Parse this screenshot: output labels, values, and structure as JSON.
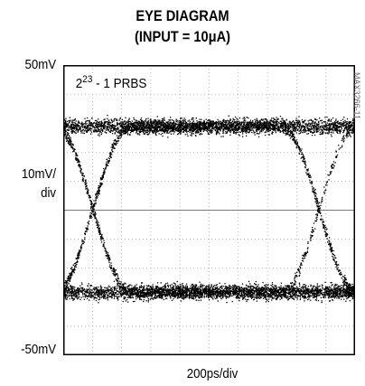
{
  "title": {
    "line1": "EYE DIAGRAM",
    "line2": "(INPUT = 10μA)"
  },
  "axes": {
    "y_top": "50mV",
    "y_scale_line1": "10mV/",
    "y_scale_line2": "div",
    "y_bottom": "-50mV",
    "x_scale": "200ps/div"
  },
  "annotation": {
    "pattern_base": "2",
    "pattern_exp": "23",
    "pattern_rest": " - 1 PRBS"
  },
  "part_number": "MAX3266-11",
  "chart_data": {
    "type": "eye_diagram",
    "title": "EYE DIAGRAM (INPUT = 10μA)",
    "xlabel": "200ps/div",
    "ylabel": "10mV/div",
    "ylim": [
      -50,
      50
    ],
    "y_unit": "mV",
    "x_divisions": 10,
    "y_divisions": 10,
    "x_per_div_ps": 200,
    "xlim_ps": [
      0,
      2000
    ],
    "grid": "dotted",
    "high_level_mV": 29,
    "low_level_mV": -28,
    "crossing_mV": 0,
    "crossings_ps": [
      200,
      1750
    ],
    "rail_thickness_mV": 4,
    "pattern": "2^23 - 1 PRBS",
    "trace_color": "#000000"
  }
}
